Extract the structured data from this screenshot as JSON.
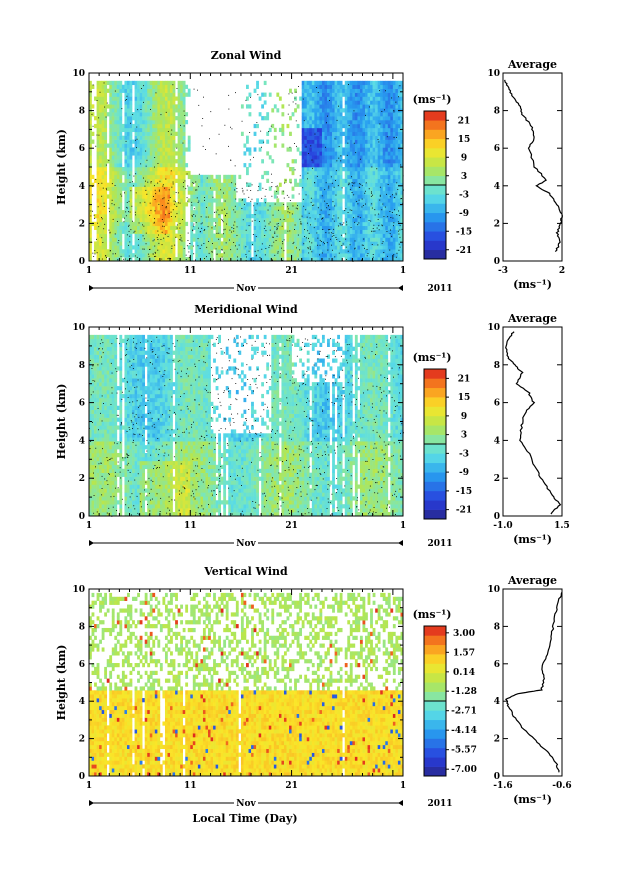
{
  "figure": {
    "xlabel": "Local Time (Day)",
    "month_label": "Nov",
    "year_label": "2011",
    "ylabel": "Height (km)",
    "avg_title": "Average",
    "unit": "(ms⁻¹)"
  },
  "chart_data": [
    {
      "type": "heatmap",
      "title": "Zonal Wind",
      "xticks": [
        "1",
        "11",
        "21",
        "1"
      ],
      "xlim_days": [
        1,
        32
      ],
      "ylim": [
        0,
        10
      ],
      "yticks": [
        "0",
        "2",
        "4",
        "6",
        "8",
        "10"
      ],
      "colorbar": {
        "unit": "(ms⁻¹)",
        "range": [
          -24,
          24
        ],
        "tick_values": [
          21,
          15,
          9,
          3,
          -3,
          -9,
          -15,
          -21
        ],
        "tick_labels": [
          "21",
          "15",
          "9",
          "3",
          "-3",
          "-9",
          "-15",
          "-21"
        ]
      },
      "dominant": "westward (negative) in second half, eastward (positive) in first days",
      "average": {
        "title": "Average",
        "xlabel": "(ms⁻¹)",
        "xlim": [
          -3,
          2
        ],
        "xticks": [
          "-3",
          "2"
        ],
        "ylim": [
          0,
          10
        ],
        "yticks": [
          "0",
          "2",
          "4",
          "6",
          "8",
          "10"
        ],
        "profile": [
          [
            1.5,
            0.5
          ],
          [
            1.8,
            1.0
          ],
          [
            1.6,
            1.5
          ],
          [
            1.9,
            2.0
          ],
          [
            2.0,
            2.5
          ],
          [
            1.6,
            3.0
          ],
          [
            0.9,
            3.6
          ],
          [
            -0.2,
            4.0
          ],
          [
            0.7,
            4.3
          ],
          [
            -0.3,
            5.0
          ],
          [
            -0.8,
            6.0
          ],
          [
            -0.3,
            6.6
          ],
          [
            -0.6,
            7.2
          ],
          [
            -1.4,
            7.8
          ],
          [
            -1.6,
            8.3
          ],
          [
            -2.2,
            8.8
          ],
          [
            -2.6,
            9.3
          ],
          [
            -2.9,
            9.7
          ]
        ]
      }
    },
    {
      "type": "heatmap",
      "title": "Meridional Wind",
      "xticks": [
        "1",
        "11",
        "21",
        "1"
      ],
      "xlim_days": [
        1,
        32
      ],
      "ylim": [
        0,
        10
      ],
      "yticks": [
        "0",
        "2",
        "4",
        "6",
        "8",
        "10"
      ],
      "colorbar": {
        "unit": "(ms⁻¹)",
        "range": [
          -24,
          24
        ],
        "tick_values": [
          21,
          15,
          9,
          3,
          -3,
          -9,
          -15,
          -21
        ],
        "tick_labels": [
          "21",
          "15",
          "9",
          "3",
          "-3",
          "-9",
          "-15",
          "-21"
        ]
      },
      "dominant": "weak, mostly -5 to 5 m/s",
      "average": {
        "title": "Average",
        "xlabel": "(ms⁻¹)",
        "xlim": [
          -1.0,
          1.5
        ],
        "xticks": [
          "-1.0",
          "1.5"
        ],
        "ylim": [
          0,
          10
        ],
        "yticks": [
          "0",
          "2",
          "4",
          "6",
          "8",
          "10"
        ],
        "profile": [
          [
            1.0,
            0.1
          ],
          [
            1.4,
            0.6
          ],
          [
            1.1,
            1.1
          ],
          [
            0.7,
            1.8
          ],
          [
            0.4,
            2.5
          ],
          [
            0.1,
            3.3
          ],
          [
            -0.3,
            4.0
          ],
          [
            -0.2,
            4.8
          ],
          [
            -0.1,
            5.4
          ],
          [
            0.3,
            6.0
          ],
          [
            0.1,
            6.5
          ],
          [
            -0.4,
            7.0
          ],
          [
            -0.2,
            7.6
          ],
          [
            -0.5,
            8.0
          ],
          [
            -0.8,
            8.4
          ],
          [
            -0.9,
            9.0
          ],
          [
            -0.7,
            9.5
          ],
          [
            -0.5,
            9.8
          ]
        ]
      }
    },
    {
      "type": "heatmap",
      "title": "Vertical Wind",
      "xticks": [
        "1",
        "11",
        "21",
        "1"
      ],
      "xlim_days": [
        1,
        32
      ],
      "ylim": [
        0,
        10
      ],
      "yticks": [
        "0",
        "2",
        "4",
        "6",
        "8",
        "10"
      ],
      "colorbar": {
        "unit": "(ms⁻¹)",
        "range": [
          -7.5,
          3.5
        ],
        "tick_values": [
          3.0,
          1.57,
          0.14,
          -1.28,
          -2.71,
          -4.14,
          -5.57,
          -7.0
        ],
        "tick_labels": [
          "3.00",
          "1.57",
          "0.14",
          "-1.28",
          "-2.71",
          "-4.14",
          "-5.57",
          "-7.00"
        ]
      },
      "dominant": "mostly slightly positive near 0 to 1 m/s, downdrafts below 4.5 km",
      "average": {
        "title": "Average",
        "xlabel": "(ms⁻¹)",
        "xlim": [
          -1.6,
          -0.6
        ],
        "xticks": [
          "-1.6",
          "-0.6"
        ],
        "ylim": [
          0,
          10
        ],
        "yticks": [
          "0",
          "2",
          "4",
          "6",
          "8",
          "10"
        ],
        "profile": [
          [
            -0.65,
            0.2
          ],
          [
            -0.7,
            0.7
          ],
          [
            -0.85,
            1.3
          ],
          [
            -1.05,
            1.9
          ],
          [
            -1.25,
            2.5
          ],
          [
            -1.4,
            3.1
          ],
          [
            -1.5,
            3.7
          ],
          [
            -1.55,
            4.1
          ],
          [
            -1.35,
            4.4
          ],
          [
            -0.95,
            4.6
          ],
          [
            -0.9,
            5.2
          ],
          [
            -0.95,
            5.8
          ],
          [
            -0.85,
            6.5
          ],
          [
            -0.8,
            7.2
          ],
          [
            -0.75,
            8.0
          ],
          [
            -0.7,
            8.8
          ],
          [
            -0.65,
            9.4
          ],
          [
            -0.6,
            9.9
          ]
        ]
      }
    }
  ]
}
